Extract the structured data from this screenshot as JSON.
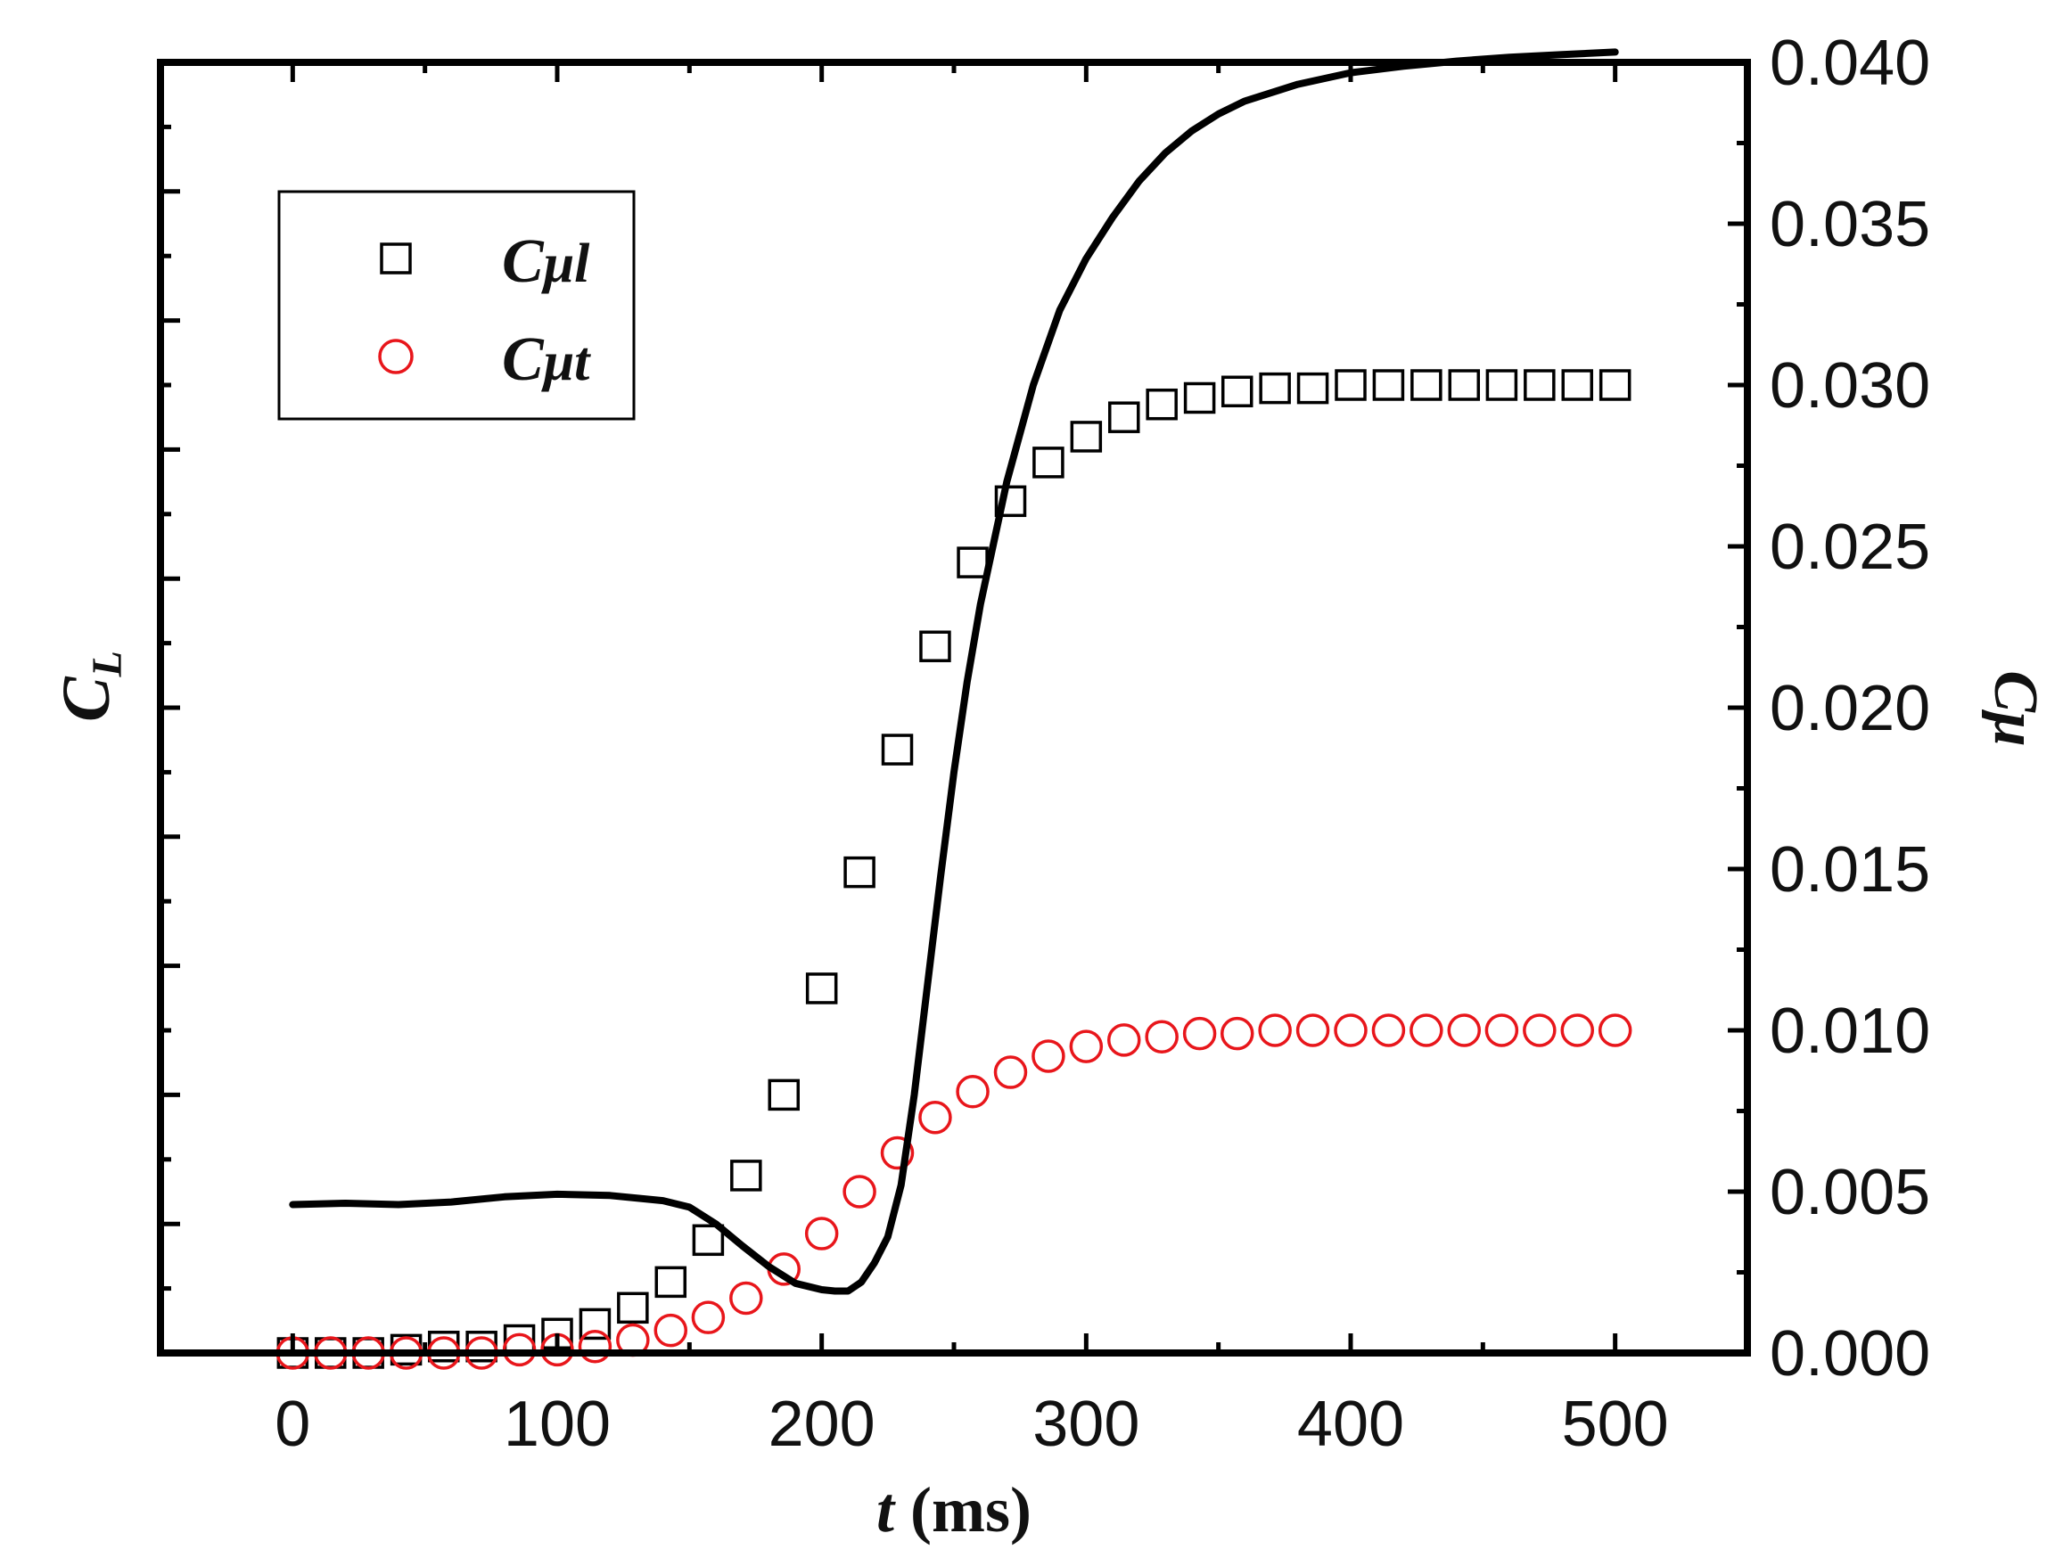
{
  "chart_data": {
    "type": "line",
    "title": "",
    "xlabel": {
      "var": "t",
      "unit": " (ms)"
    },
    "ylabel_left": {
      "main": "C",
      "sub": "L"
    },
    "ylabel_right": "Cμ",
    "xlim": [
      -50,
      550
    ],
    "ylim_right": [
      0,
      0.04
    ],
    "ylim_left": [
      0,
      1
    ],
    "x_ticks": [
      0,
      100,
      200,
      300,
      400,
      500
    ],
    "x_tick_labels": [
      "0",
      "100",
      "200",
      "300",
      "400",
      "500"
    ],
    "y_right_ticks": [
      0,
      0.005,
      0.01,
      0.015,
      0.02,
      0.025,
      0.03,
      0.035,
      0.04
    ],
    "y_right_tick_labels": [
      "0.000",
      "0.005",
      "0.010",
      "0.015",
      "0.020",
      "0.025",
      "0.030",
      "0.035",
      "0.040"
    ],
    "y_left_major_ticks": [
      0,
      0.1,
      0.2,
      0.3,
      0.4,
      0.5,
      0.6,
      0.7,
      0.8,
      0.9,
      1.0
    ],
    "legend": {
      "placement": "top-left",
      "entries": [
        {
          "main": "C",
          "sub": "μl",
          "marker": "square",
          "color": "#000000"
        },
        {
          "main": "C",
          "sub": "μt",
          "marker": "circle",
          "color": "#e8161b"
        }
      ]
    },
    "series": [
      {
        "name": "Cμl",
        "axis": "right",
        "marker": "square",
        "color": "#000000",
        "x": [
          0,
          14.3,
          28.6,
          42.9,
          57.1,
          71.4,
          85.7,
          100,
          114.3,
          128.6,
          142.9,
          157.1,
          171.4,
          185.7,
          200,
          214.3,
          228.6,
          242.9,
          257.1,
          271.4,
          285.7,
          300,
          314.3,
          328.6,
          342.9,
          357.1,
          371.4,
          385.7,
          400,
          414.3,
          428.6,
          442.9,
          457.1,
          471.4,
          485.7,
          500
        ],
        "y": [
          0.0,
          0.0,
          0.0,
          0.0001,
          0.0002,
          0.0002,
          0.0004,
          0.0006,
          0.0009,
          0.0014,
          0.0022,
          0.0035,
          0.0055,
          0.008,
          0.0113,
          0.0149,
          0.0187,
          0.0219,
          0.0245,
          0.0264,
          0.0276,
          0.0284,
          0.029,
          0.0294,
          0.0296,
          0.0298,
          0.0299,
          0.0299,
          0.03,
          0.03,
          0.03,
          0.03,
          0.03,
          0.03,
          0.03,
          0.03
        ]
      },
      {
        "name": "Cμt",
        "axis": "right",
        "marker": "circle",
        "color": "#e8161b",
        "x": [
          0,
          14.3,
          28.6,
          42.9,
          57.1,
          71.4,
          85.7,
          100,
          114.3,
          128.6,
          142.9,
          157.1,
          171.4,
          185.7,
          200,
          214.3,
          228.6,
          242.9,
          257.1,
          271.4,
          285.7,
          300,
          314.3,
          328.6,
          342.9,
          357.1,
          371.4,
          385.7,
          400,
          414.3,
          428.6,
          442.9,
          457.1,
          471.4,
          485.7,
          500
        ],
        "y": [
          0.0,
          0.0,
          0.0,
          0.0,
          0.0,
          0.0,
          0.0001,
          0.0001,
          0.0002,
          0.0004,
          0.0007,
          0.0011,
          0.0017,
          0.0026,
          0.0037,
          0.005,
          0.0062,
          0.0073,
          0.0081,
          0.0087,
          0.0092,
          0.0095,
          0.0097,
          0.0098,
          0.0099,
          0.0099,
          0.01,
          0.01,
          0.01,
          0.01,
          0.01,
          0.01,
          0.01,
          0.01,
          0.01,
          0.01
        ]
      },
      {
        "name": "CL",
        "axis": "left",
        "marker": "none",
        "color": "#000000",
        "x": [
          0,
          20,
          40,
          60,
          80,
          100,
          120,
          140,
          150,
          160,
          170,
          180,
          190,
          200,
          205,
          210,
          215,
          220,
          225,
          230,
          235,
          240,
          245,
          250,
          255,
          260,
          270,
          280,
          290,
          300,
          310,
          320,
          330,
          340,
          350,
          360,
          380,
          400,
          420,
          440,
          460,
          480,
          500
        ],
        "y": [
          0.115,
          0.116,
          0.115,
          0.117,
          0.121,
          0.123,
          0.122,
          0.118,
          0.113,
          0.1,
          0.083,
          0.067,
          0.054,
          0.049,
          0.048,
          0.048,
          0.055,
          0.07,
          0.09,
          0.13,
          0.2,
          0.285,
          0.37,
          0.45,
          0.52,
          0.58,
          0.675,
          0.75,
          0.808,
          0.848,
          0.88,
          0.908,
          0.93,
          0.947,
          0.96,
          0.97,
          0.983,
          0.992,
          0.997,
          1.001,
          1.004,
          1.006,
          1.008
        ]
      }
    ]
  }
}
